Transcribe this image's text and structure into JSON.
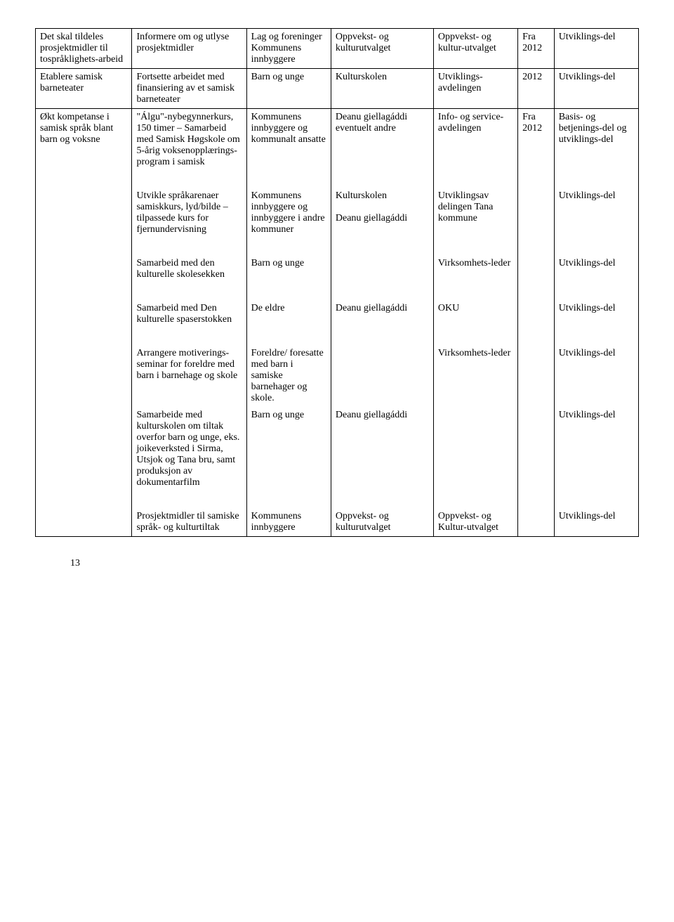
{
  "rows": [
    {
      "c1": "Det skal tildeles prosjektmidler til tospråklighets-arbeid",
      "c2": "Informere om og utlyse prosjektmidler",
      "c3": "Lag og foreninger Kommunens innbyggere",
      "c4": "Oppvekst- og kulturutvalget",
      "c5": "Oppvekst- og kultur-utvalget",
      "c6": "Fra 2012",
      "c7": "Utviklings-del"
    },
    {
      "c1": "Etablere samisk barneteater",
      "c2": "Fortsette arbeidet med finansiering av et samisk barneteater",
      "c3": "Barn og unge",
      "c4": "Kulturskolen",
      "c5": "Utviklings-avdelingen",
      "c6": "2012",
      "c7": "Utviklings-del"
    },
    {
      "c1": "Økt kompetanse i samisk språk blant barn og voksne",
      "c2": "\"Álgu\"-nybegynnerkurs, 150 timer – Samarbeid med Samisk Høgskole om 5-årig voksenopplærings-program i samisk",
      "c3": "Kommunens innbyggere og kommunalt ansatte",
      "c4": "Deanu giellagáddi eventuelt andre",
      "c5": "Info- og service-avdelingen",
      "c6": "Fra 2012",
      "c7": "Basis- og betjenings-del og utviklings-del"
    },
    {
      "c2": "Utvikle språkarenaer samiskkurs, lyd/bilde – tilpassede kurs for fjernundervisning",
      "c3": "Kommunens innbyggere og innbyggere i andre kommuner",
      "c4": "Kulturskolen\n\nDeanu giellagáddi",
      "c5": "Utviklingsav delingen Tana kommune",
      "c7": "Utviklings-del"
    },
    {
      "c2": "Samarbeid med den kulturelle skolesekken",
      "c3": "Barn og unge",
      "c5": "Virksomhets-leder",
      "c7": "Utviklings-del"
    },
    {
      "c2": "Samarbeid med Den kulturelle spaserstokken",
      "c3": "De eldre",
      "c4": "Deanu giellagáddi",
      "c5": "OKU",
      "c7": "Utviklings-del"
    },
    {
      "c2": "Arrangere motiverings-seminar for foreldre med barn i barnehage og skole",
      "c3": "Foreldre/ foresatte med barn i samiske barnehager og skole.",
      "c5": "Virksomhets-leder",
      "c7": "Utviklings-del"
    },
    {
      "c2": "Samarbeide med kulturskolen om tiltak overfor barn og unge, eks. joikeverksted i Sirma, Utsjok og Tana bru, samt produksjon av dokumentarfilm",
      "c3": "Barn og unge",
      "c4": "Deanu giellagáddi",
      "c7": "Utviklings-del"
    },
    {
      "c2": "Prosjektmidler til samiske språk- og kulturtiltak",
      "c3": "Kommunens innbyggere",
      "c4": "Oppvekst- og kulturutvalget",
      "c5": "Oppvekst- og Kultur-utvalget",
      "c7": "Utviklings-del"
    }
  ],
  "pageNumber": "13"
}
